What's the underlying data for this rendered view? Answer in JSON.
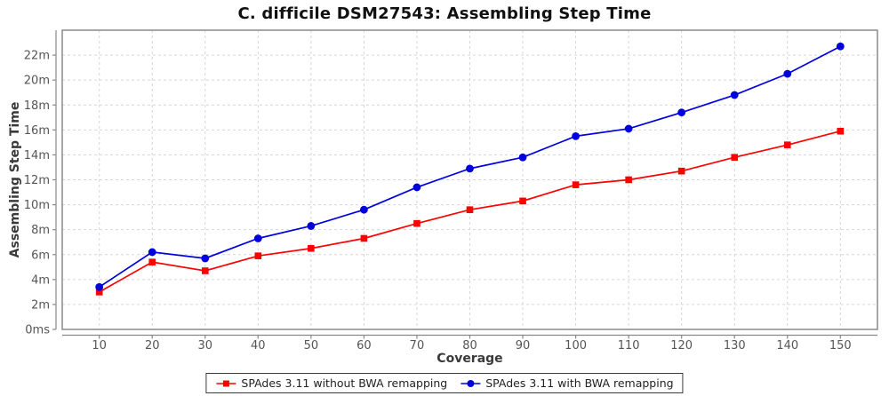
{
  "title": "C. difficile DSM27543: Assembling Step Time",
  "chart_data": {
    "type": "line",
    "title": "C. difficile DSM27543: Assembling Step Time",
    "xlabel": "Coverage",
    "ylabel": "Assembling Step Time",
    "x": [
      10,
      20,
      30,
      40,
      50,
      60,
      70,
      80,
      90,
      100,
      110,
      120,
      130,
      140,
      150
    ],
    "x_tick_labels": [
      "10",
      "20",
      "30",
      "40",
      "50",
      "60",
      "70",
      "80",
      "90",
      "100",
      "110",
      "120",
      "130",
      "140",
      "150"
    ],
    "y_ticks": [
      {
        "value": 0,
        "label": "0ms"
      },
      {
        "value": 2,
        "label": "2m"
      },
      {
        "value": 4,
        "label": "4m"
      },
      {
        "value": 6,
        "label": "6m"
      },
      {
        "value": 8,
        "label": "8m"
      },
      {
        "value": 10,
        "label": "10m"
      },
      {
        "value": 12,
        "label": "12m"
      },
      {
        "value": 14,
        "label": "14m"
      },
      {
        "value": 16,
        "label": "16m"
      },
      {
        "value": 18,
        "label": "18m"
      },
      {
        "value": 20,
        "label": "20m"
      },
      {
        "value": 22,
        "label": "22m"
      }
    ],
    "y_unit": "minutes",
    "xlim": [
      3,
      157
    ],
    "ylim": [
      0,
      24
    ],
    "grid": true,
    "grid_style": "dashed",
    "legend_position": "bottom-center",
    "series": [
      {
        "name": "SPAdes 3.11 without BWA remapping",
        "color": "#ff0000",
        "marker": "square",
        "values": [
          3.0,
          5.4,
          4.7,
          5.9,
          6.5,
          7.3,
          8.5,
          9.6,
          10.3,
          11.6,
          12.0,
          12.7,
          13.8,
          14.8,
          15.9
        ]
      },
      {
        "name": "SPAdes 3.11 with BWA remapping",
        "color": "#0000dd",
        "marker": "circle",
        "values": [
          3.4,
          6.2,
          5.7,
          7.3,
          8.3,
          9.6,
          11.4,
          12.9,
          13.8,
          15.5,
          16.1,
          17.4,
          18.8,
          20.5,
          22.7
        ]
      }
    ],
    "style": {
      "grid_color": "#d6d6d6",
      "frame_color": "#8a8a8a",
      "axis_color": "#888888",
      "tick_label_color": "#555555",
      "axis_title_color": "#3a3a3a",
      "title_color": "#111111"
    }
  }
}
